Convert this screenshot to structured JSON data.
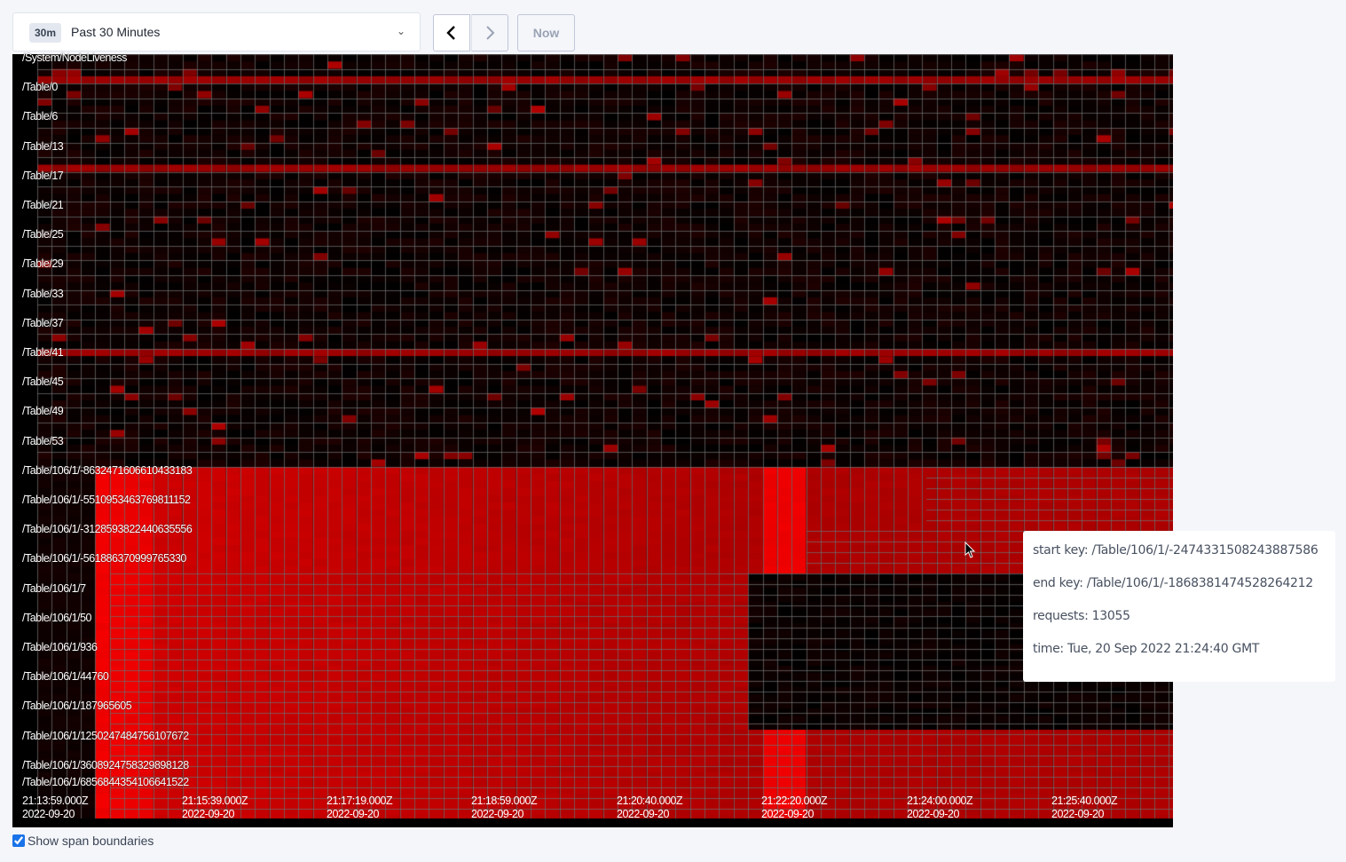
{
  "toolbar": {
    "range_badge": "30m",
    "range_label": "Past 30 Minutes",
    "prev_icon": "chevron-left-icon",
    "next_icon": "chevron-right-icon",
    "now_label": "Now"
  },
  "heatmap": {
    "row_labels": [
      "/System/NodeLiveness",
      "/Table/0",
      "/Table/6",
      "/Table/13",
      "/Table/17",
      "/Table/21",
      "/Table/25",
      "/Table/29",
      "/Table/33",
      "/Table/37",
      "/Table/41",
      "/Table/45",
      "/Table/49",
      "/Table/53",
      "/Table/106/1/-8632471606610433183",
      "/Table/106/1/-5510953463769811152",
      "/Table/106/1/-3128593822440635556",
      "/Table/106/1/-561886370999765330",
      "/Table/106/1/7",
      "/Table/106/1/50",
      "/Table/106/1/936",
      "/Table/106/1/44760",
      "/Table/106/1/187965605",
      "/Table/106/1/1250247484756107672",
      "/Table/106/1/3608924758329898128",
      "/Table/106/1/6856844354106641522"
    ],
    "time_labels": [
      {
        "time": "21:13:59.000Z",
        "date": "2022-09-20"
      },
      {
        "time": "21:15:39.000Z",
        "date": "2022-09-20"
      },
      {
        "time": "21:17:19.000Z",
        "date": "2022-09-20"
      },
      {
        "time": "21:18:59.000Z",
        "date": "2022-09-20"
      },
      {
        "time": "21:20:40.000Z",
        "date": "2022-09-20"
      },
      {
        "time": "21:22:20.000Z",
        "date": "2022-09-20"
      },
      {
        "time": "21:24:00.000Z",
        "date": "2022-09-20"
      },
      {
        "time": "21:25:40.000Z",
        "date": "2022-09-20"
      }
    ],
    "colors": {
      "low": "#000000",
      "high": "#ff0000",
      "grid": "#606060"
    }
  },
  "tooltip": {
    "start_key": "start key: /Table/106/1/-2474331508243887586",
    "end_key": "end key: /Table/106/1/-1868381474528264212",
    "requests": "requests: 13055",
    "time": "time: Tue, 20 Sep 2022 21:24:40 GMT"
  },
  "options": {
    "show_span_boundaries": "Show span boundaries",
    "show_span_boundaries_checked": true
  }
}
